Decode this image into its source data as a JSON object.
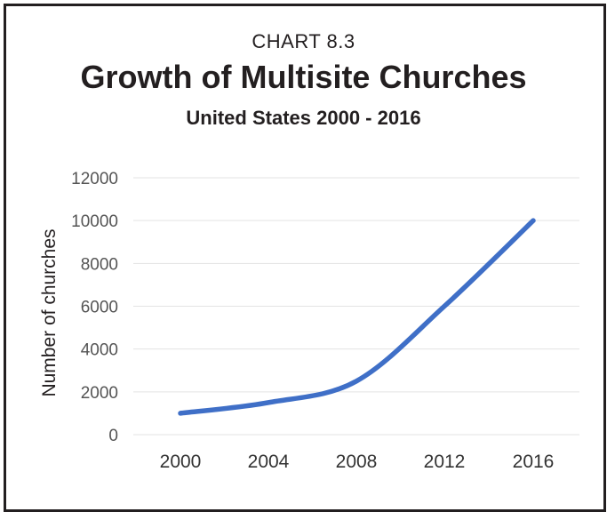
{
  "header": {
    "chart_number": "CHART 8.3"
  },
  "chart_data": {
    "type": "line",
    "title": "Growth of Multisite Churches",
    "subtitle": "United States 2000 - 2016",
    "xlabel": "",
    "ylabel": "Number of churches",
    "x": [
      2000,
      2004,
      2008,
      2012,
      2016
    ],
    "x_tick_labels": [
      "2000",
      "2004",
      "2008",
      "2012",
      "2016"
    ],
    "series": [
      {
        "values": [
          1000,
          1500,
          2500,
          6000,
          10000
        ],
        "color": "#3f6fc7"
      }
    ],
    "ylim": [
      0,
      12000
    ],
    "y_ticks": [
      0,
      2000,
      4000,
      6000,
      8000,
      10000,
      12000
    ],
    "y_tick_labels": [
      "0",
      "2000",
      "4000",
      "6000",
      "8000",
      "10000",
      "12000"
    ],
    "grid": true,
    "legend": "none",
    "colors": {
      "line": "#3f6fc7",
      "grid": "#e3e3e3",
      "text": "#231f20",
      "tick_text": "#555555"
    }
  }
}
